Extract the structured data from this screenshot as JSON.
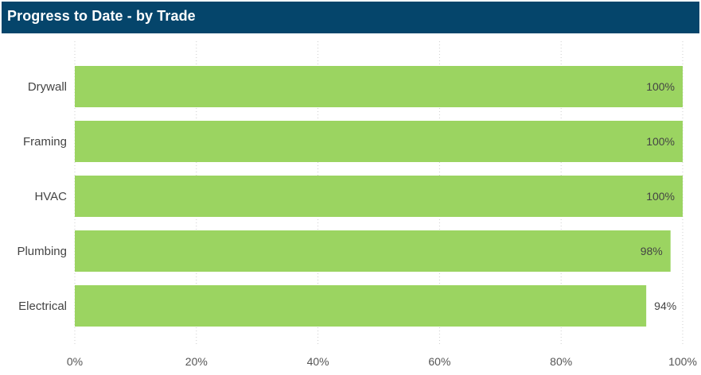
{
  "header": {
    "title": "Progress to Date - by Trade"
  },
  "chart_data": {
    "type": "bar",
    "orientation": "horizontal",
    "title": "Progress to Date - by Trade",
    "categories": [
      "Drywall",
      "Framing",
      "HVAC",
      "Plumbing",
      "Electrical"
    ],
    "values": [
      100,
      100,
      100,
      98,
      94
    ],
    "value_labels": [
      "100%",
      "100%",
      "100%",
      "98%",
      "94%"
    ],
    "xlim": [
      0,
      100
    ],
    "x_ticks": [
      "0%",
      "20%",
      "40%",
      "60%",
      "80%",
      "100%"
    ],
    "grid": "vertical dotted",
    "colors": {
      "bar": "#9bd461",
      "header_bg": "#05456b",
      "label_text": "#444444",
      "tick_text": "#555555",
      "grid": "#cccccc"
    }
  }
}
